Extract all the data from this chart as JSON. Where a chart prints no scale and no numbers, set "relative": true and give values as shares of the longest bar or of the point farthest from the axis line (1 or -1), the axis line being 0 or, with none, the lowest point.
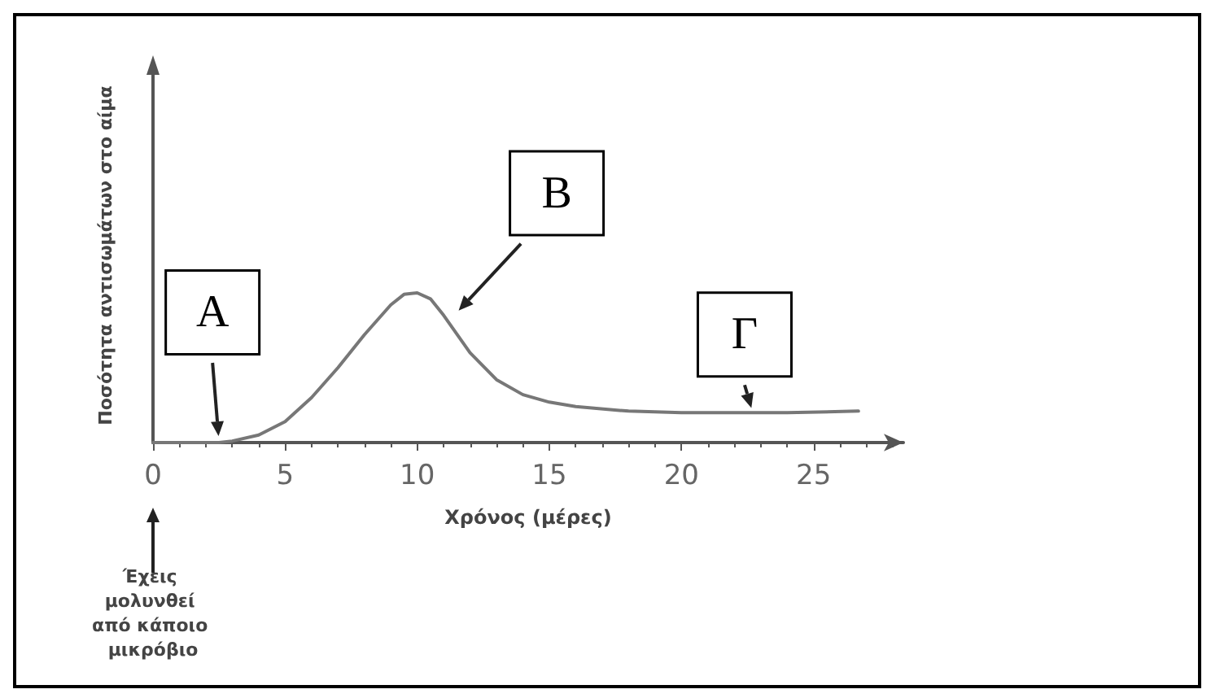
{
  "chart_data": {
    "type": "line",
    "relative": true,
    "xlabel": "Χρόνος (μέρες)",
    "ylabel": "Ποσότητα αντισωμάτων στο αίμα",
    "x": [
      0,
      2,
      2.5,
      3,
      4,
      5,
      6,
      7,
      8,
      9,
      9.5,
      10,
      10.5,
      11,
      12,
      13,
      14,
      15,
      16,
      18,
      20,
      22,
      24,
      26.7
    ],
    "series": [
      {
        "color": "#777777",
        "values": [
          0,
          0,
          0,
          0.01,
          0.05,
          0.14,
          0.3,
          0.5,
          0.72,
          0.92,
          0.99,
          1,
          0.96,
          0.85,
          0.6,
          0.42,
          0.32,
          0.27,
          0.24,
          0.21,
          0.2,
          0.2,
          0.2,
          0.21
        ]
      }
    ],
    "xlim": [
      0,
      28.4
    ],
    "xticks": [
      0,
      5,
      10,
      15,
      20,
      25
    ],
    "grid": false,
    "marker": "none",
    "line_style": "solid",
    "annotations": [
      {
        "text": "A",
        "x": 2.5,
        "y": 0
      },
      {
        "text": "B",
        "x": 11.4,
        "y": 0.85
      },
      {
        "text": "Γ",
        "x": 22.7,
        "y": 0.2
      },
      "Έχεις μολυνθεί από κάποιο μικρόβιο"
    ]
  }
}
